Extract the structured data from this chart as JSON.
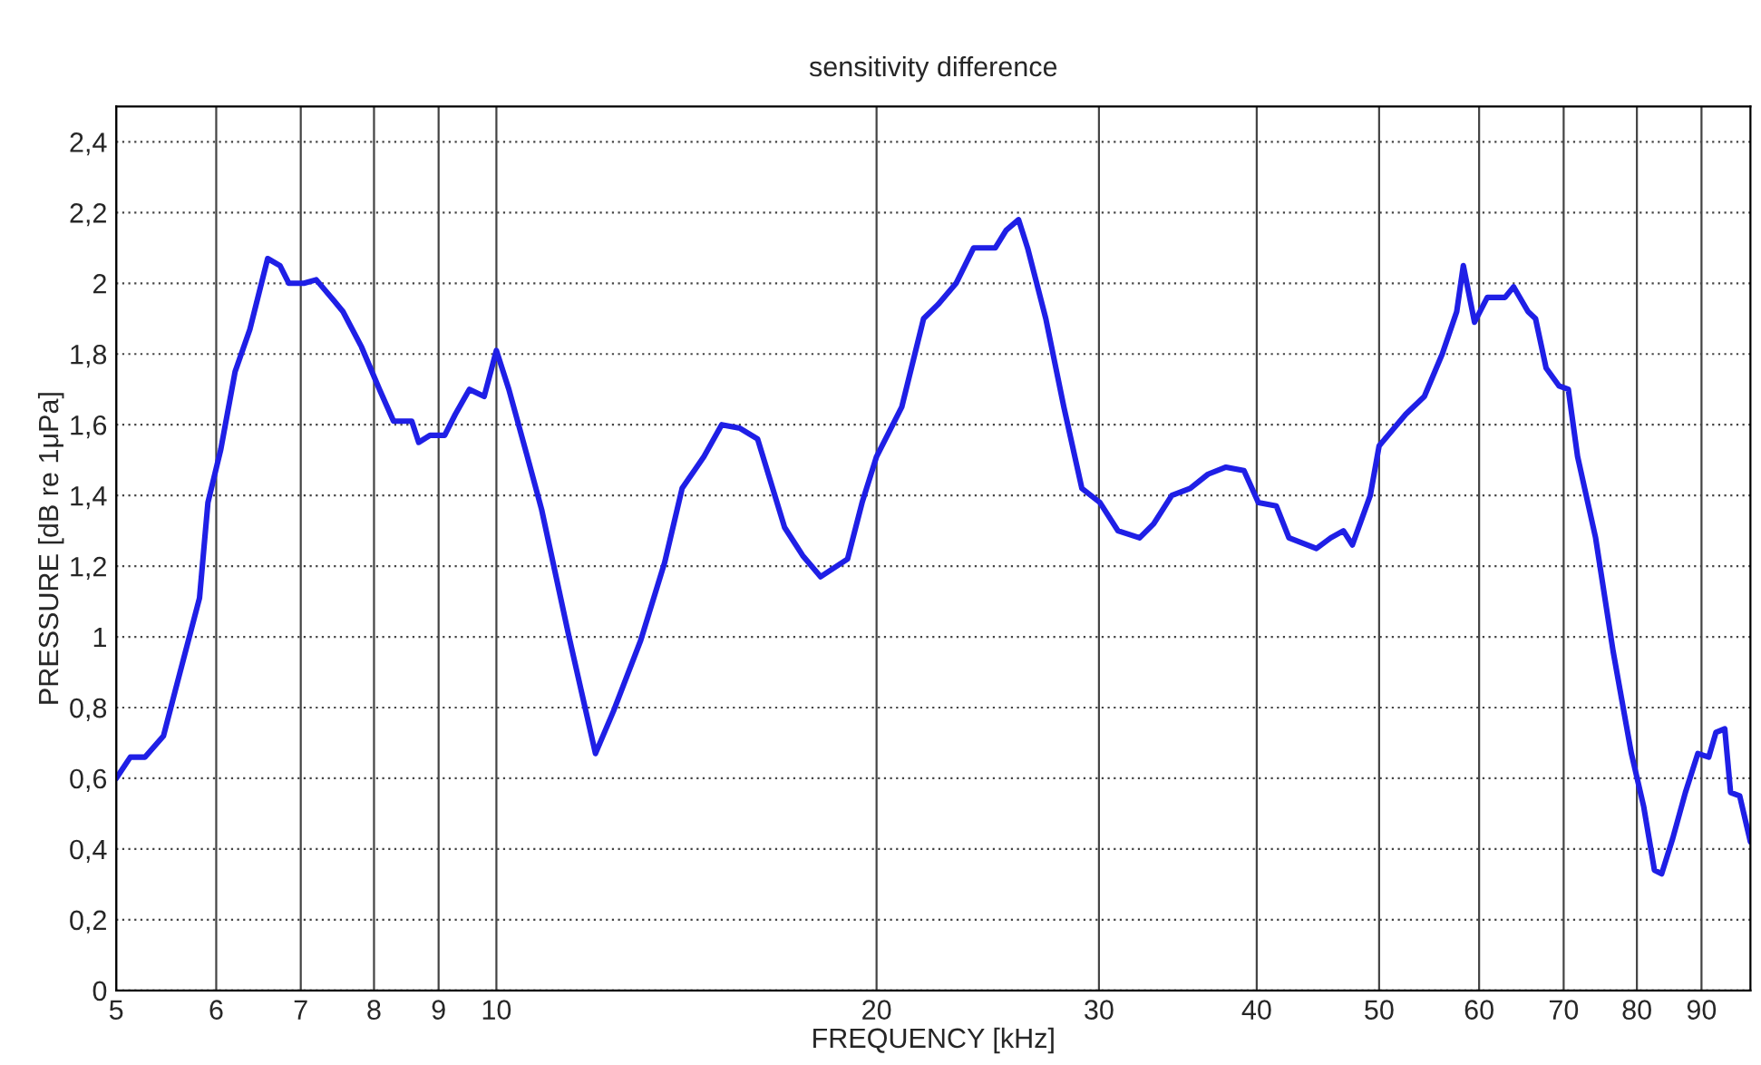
{
  "chart_data": {
    "type": "line",
    "title": "sensitivity difference",
    "xlabel": "FREQUENCY [kHz]",
    "ylabel": "PRESSURE [dB re 1μPa]",
    "log": "x",
    "grid": true,
    "marker": "none",
    "line_style": "solid",
    "xlim": [
      5,
      98.4
    ],
    "ylim": [
      0,
      2.5
    ],
    "xticks": [
      5,
      6,
      7,
      8,
      9,
      10,
      20,
      30,
      40,
      50,
      60,
      70,
      80,
      90
    ],
    "yticks": [
      0,
      {
        "value": 0.2,
        "label": "0,2"
      },
      {
        "value": 0.4,
        "label": "0,4"
      },
      {
        "value": 0.6,
        "label": "0,6"
      },
      {
        "value": 0.8,
        "label": "0,8"
      },
      1,
      {
        "value": 1.2,
        "label": "1,2"
      },
      {
        "value": 1.4,
        "label": "1,4"
      },
      {
        "value": 1.6,
        "label": "1,6"
      },
      {
        "value": 1.8,
        "label": "1,8"
      },
      2,
      {
        "value": 2.2,
        "label": "2,2"
      },
      {
        "value": 2.4,
        "label": "2,4"
      }
    ],
    "series": [
      {
        "color": "#1f1fe6",
        "x": [
          5.0,
          5.13,
          5.27,
          5.45,
          5.57,
          5.82,
          5.91,
          6.05,
          6.21,
          6.38,
          6.59,
          6.74,
          6.85,
          7.04,
          7.2,
          7.44,
          7.56,
          7.82,
          8.08,
          8.29,
          8.57,
          8.68,
          8.86,
          9.1,
          9.28,
          9.52,
          9.78,
          10.0,
          10.23,
          10.58,
          10.86,
          11.4,
          11.98,
          12.38,
          13.01,
          13.59,
          14.03,
          14.6,
          15.08,
          15.59,
          16.1,
          16.91,
          17.48,
          18.06,
          18.97,
          19.48,
          20.0,
          20.94,
          21.79,
          22.37,
          23.12,
          23.87,
          24.83,
          25.33,
          25.91,
          26.34,
          27.23,
          28.14,
          29.08,
          30.05,
          31.06,
          32.31,
          33.15,
          34.26,
          35.43,
          36.6,
          37.82,
          39.08,
          40.12,
          41.46,
          42.42,
          44.6,
          45.78,
          46.85,
          47.62,
          49.2,
          50.0,
          52.5,
          54.3,
          56.1,
          57.6,
          58.3,
          59.5,
          60.9,
          62.9,
          63.9,
          65.6,
          66.5,
          67.8,
          69.4,
          70.6,
          71.8,
          74.2,
          76.6,
          79.2,
          81.0,
          82.6,
          83.7,
          85.4,
          87.4,
          89.4,
          91.2,
          92.4,
          93.9,
          94.9,
          96.5,
          98.4
        ],
        "values": [
          0.6,
          0.66,
          0.66,
          0.72,
          0.85,
          1.11,
          1.38,
          1.53,
          1.75,
          1.87,
          2.07,
          2.05,
          2.0,
          2.0,
          2.01,
          1.95,
          1.92,
          1.82,
          1.7,
          1.61,
          1.61,
          1.55,
          1.57,
          1.57,
          1.63,
          1.7,
          1.68,
          1.81,
          1.7,
          1.51,
          1.36,
          1.01,
          0.67,
          0.79,
          0.99,
          1.21,
          1.42,
          1.51,
          1.6,
          1.59,
          1.56,
          1.31,
          1.23,
          1.17,
          1.22,
          1.38,
          1.51,
          1.65,
          1.9,
          1.94,
          2.0,
          2.1,
          2.1,
          2.15,
          2.18,
          2.1,
          1.9,
          1.65,
          1.42,
          1.38,
          1.3,
          1.28,
          1.32,
          1.4,
          1.42,
          1.46,
          1.48,
          1.47,
          1.38,
          1.37,
          1.28,
          1.25,
          1.28,
          1.3,
          1.26,
          1.4,
          1.54,
          1.63,
          1.68,
          1.8,
          1.92,
          2.05,
          1.89,
          1.96,
          1.96,
          1.99,
          1.92,
          1.9,
          1.76,
          1.71,
          1.7,
          1.51,
          1.28,
          0.96,
          0.67,
          0.52,
          0.34,
          0.33,
          0.43,
          0.56,
          0.67,
          0.66,
          0.73,
          0.74,
          0.56,
          0.55,
          0.42
        ]
      }
    ]
  }
}
